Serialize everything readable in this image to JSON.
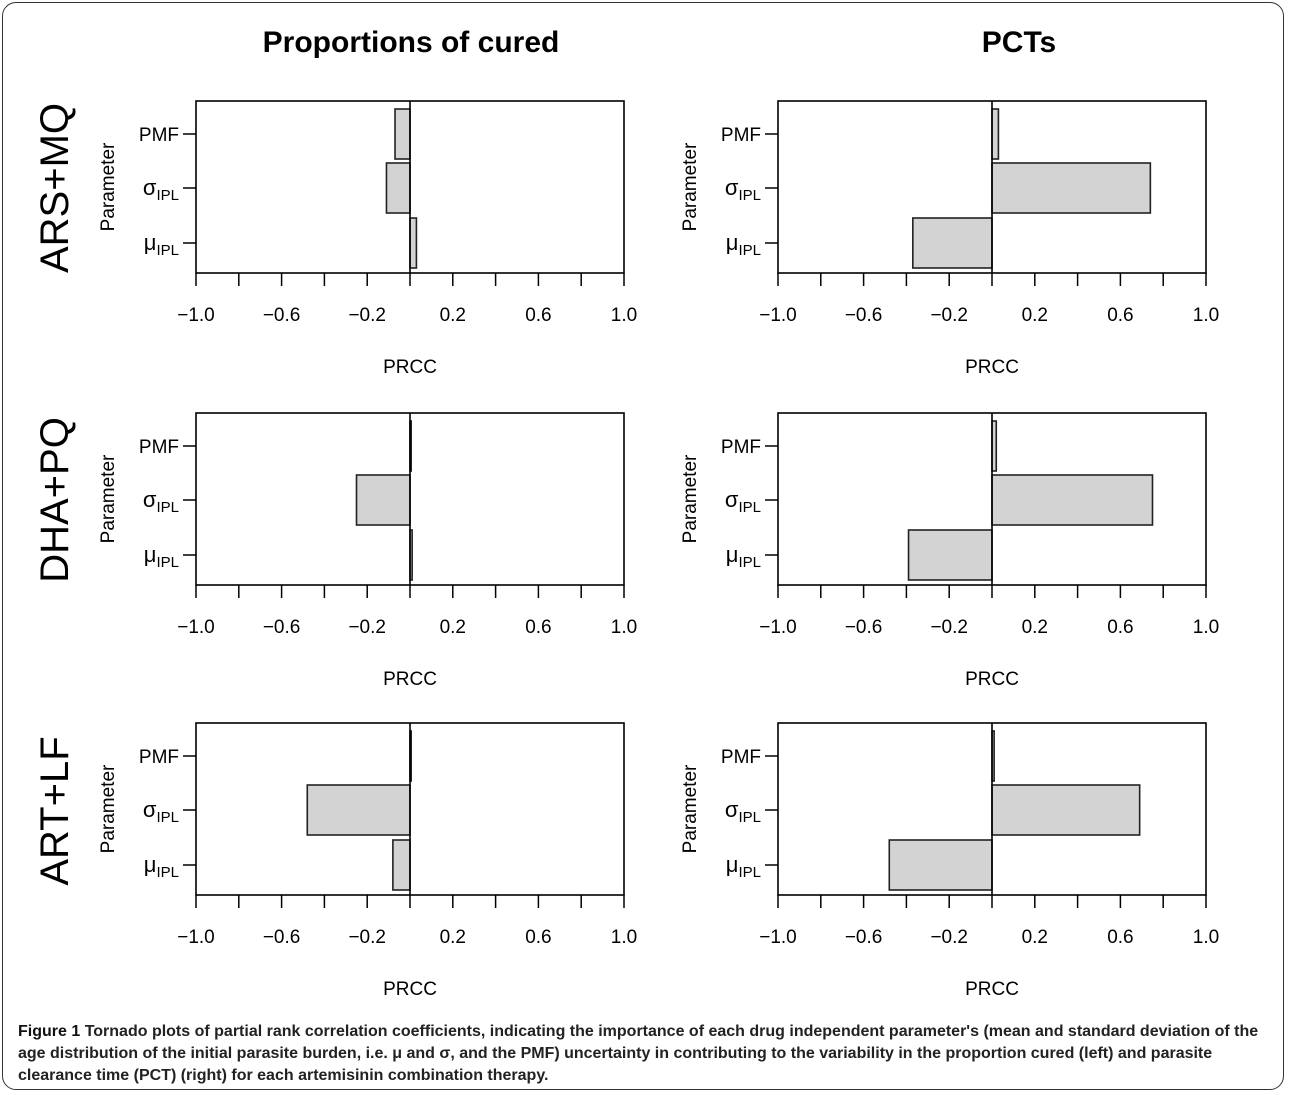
{
  "column_titles": [
    "Proportions of cured",
    "PCTs"
  ],
  "row_titles": [
    "ARS+MQ",
    "DHA+PQ",
    "ART+LF"
  ],
  "caption": {
    "figure_label": "Figure 1",
    "text": "Tornado plots of partial rank correlation coefficients, indicating the importance of each drug independent parameter's (mean and standard deviation of the age distribution of the initial parasite burden, i.e. μ and σ, and the PMF) uncertainty in contributing to the variability in the proportion cured (left) and parasite clearance time (PCT) (right) for each artemisinin combination therapy."
  },
  "colors": {
    "bar_fill": "#d3d3d3",
    "bar_stroke": "#222222",
    "axis": "#000000"
  },
  "chart_data": [
    {
      "type": "bar",
      "orientation": "horizontal",
      "row": "ARS+MQ",
      "column": "Proportions of cured",
      "categories": [
        "PMF",
        "σIPL",
        "μIPL"
      ],
      "values": [
        -0.07,
        -0.11,
        0.03
      ],
      "xlabel": "PRCC",
      "ylabel": "Parameter",
      "xlim": [
        -1.0,
        1.0
      ],
      "xticks": [
        "-1.0",
        "-0.6",
        "-0.2",
        "0.2",
        "0.6",
        "1.0"
      ]
    },
    {
      "type": "bar",
      "orientation": "horizontal",
      "row": "ARS+MQ",
      "column": "PCTs",
      "categories": [
        "PMF",
        "σIPL",
        "μIPL"
      ],
      "values": [
        0.03,
        0.74,
        -0.37
      ],
      "xlabel": "PRCC",
      "ylabel": "Parameter",
      "xlim": [
        -1.0,
        1.0
      ],
      "xticks": [
        "-1.0",
        "-0.6",
        "-0.2",
        "0.2",
        "0.6",
        "1.0"
      ]
    },
    {
      "type": "bar",
      "orientation": "horizontal",
      "row": "DHA+PQ",
      "column": "Proportions of cured",
      "categories": [
        "PMF",
        "σIPL",
        "μIPL"
      ],
      "values": [
        0.0,
        -0.25,
        0.01
      ],
      "xlabel": "PRCC",
      "ylabel": "Parameter",
      "xlim": [
        -1.0,
        1.0
      ],
      "xticks": [
        "-1.0",
        "-0.6",
        "-0.2",
        "0.2",
        "0.6",
        "1.0"
      ]
    },
    {
      "type": "bar",
      "orientation": "horizontal",
      "row": "DHA+PQ",
      "column": "PCTs",
      "categories": [
        "PMF",
        "σIPL",
        "μIPL"
      ],
      "values": [
        0.02,
        0.75,
        -0.39
      ],
      "xlabel": "PRCC",
      "ylabel": "Parameter",
      "xlim": [
        -1.0,
        1.0
      ],
      "xticks": [
        "-1.0",
        "-0.6",
        "-0.2",
        "0.2",
        "0.6",
        "1.0"
      ]
    },
    {
      "type": "bar",
      "orientation": "horizontal",
      "row": "ART+LF",
      "column": "Proportions of cured",
      "categories": [
        "PMF",
        "σIPL",
        "μIPL"
      ],
      "values": [
        0.0,
        -0.48,
        -0.08
      ],
      "xlabel": "PRCC",
      "ylabel": "Parameter",
      "xlim": [
        -1.0,
        1.0
      ],
      "xticks": [
        "-1.0",
        "-0.6",
        "-0.2",
        "0.2",
        "0.6",
        "1.0"
      ]
    },
    {
      "type": "bar",
      "orientation": "horizontal",
      "row": "ART+LF",
      "column": "PCTs",
      "categories": [
        "PMF",
        "σIPL",
        "μIPL"
      ],
      "values": [
        0.01,
        0.69,
        -0.48
      ],
      "xlabel": "PRCC",
      "ylabel": "Parameter",
      "xlim": [
        -1.0,
        1.0
      ],
      "xticks": [
        "-1.0",
        "-0.6",
        "-0.2",
        "0.2",
        "0.6",
        "1.0"
      ]
    }
  ]
}
